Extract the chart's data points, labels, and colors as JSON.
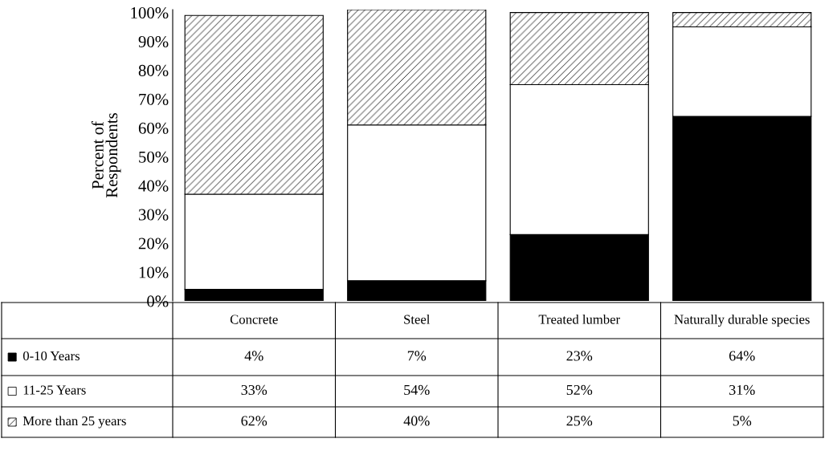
{
  "chart_data": {
    "type": "bar",
    "stacked": true,
    "ylabel": "Percent of\nRespondents",
    "categories": [
      "Concrete",
      "Steel",
      "Treated lumber",
      "Naturally durable species"
    ],
    "series": [
      {
        "name": "0-10 Years",
        "color": "#000000",
        "values": [
          4,
          7,
          23,
          64
        ],
        "value_labels": [
          "4%",
          "7%",
          "23%",
          "64%"
        ]
      },
      {
        "name": "11-25 Years",
        "color": "#ffffff",
        "values": [
          33,
          54,
          52,
          31
        ],
        "value_labels": [
          "33%",
          "54%",
          "52%",
          "31%"
        ]
      },
      {
        "name": "More than 25 years",
        "color": "#000000",
        "values": [
          62,
          40,
          25,
          5
        ],
        "value_labels": [
          "62%",
          "40%",
          "25%",
          "5%"
        ]
      }
    ],
    "ylim": [
      0,
      101
    ],
    "yticks": [
      {
        "value": 0,
        "label": "0%"
      },
      {
        "value": 10,
        "label": "10%"
      },
      {
        "value": 20,
        "label": "20%"
      },
      {
        "value": 30,
        "label": "30%"
      },
      {
        "value": 40,
        "label": "40%"
      },
      {
        "value": 50,
        "label": "50%"
      },
      {
        "value": 60,
        "label": "60%"
      },
      {
        "value": 70,
        "label": "70%"
      },
      {
        "value": 80,
        "label": "80%"
      },
      {
        "value": 90,
        "label": "90%"
      },
      {
        "value": 100,
        "label": "100%"
      }
    ],
    "tick_labels": "y",
    "legend": "bottom",
    "grid": false
  }
}
